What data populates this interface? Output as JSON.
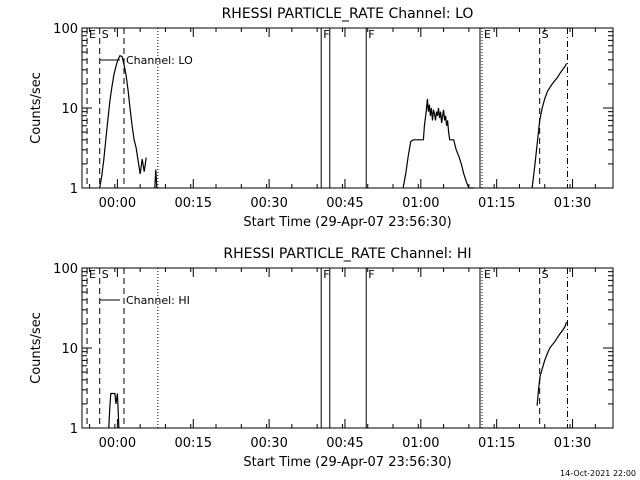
{
  "footer_timestamp": "14-Oct-2021 22:00",
  "colors": {
    "background": "#ffffff",
    "foreground": "#000000"
  },
  "chart_data": [
    {
      "type": "line",
      "title": "RHESSI PARTICLE_RATE Channel: LO",
      "xlabel": "Start Time (29-Apr-07 23:56:30)",
      "ylabel": "Counts/sec",
      "x_unit": "minutes since start time",
      "xlim": [
        -3.5,
        101.5
      ],
      "ylim": [
        1,
        100
      ],
      "yscale": "log",
      "x_ticks": [
        {
          "value": 3.5,
          "label": "00:00"
        },
        {
          "value": 18.5,
          "label": "00:15"
        },
        {
          "value": 33.5,
          "label": "00:30"
        },
        {
          "value": 48.5,
          "label": "00:45"
        },
        {
          "value": 63.5,
          "label": "01:00"
        },
        {
          "value": 78.5,
          "label": "01:15"
        },
        {
          "value": 93.5,
          "label": "01:30"
        }
      ],
      "y_ticks": [
        {
          "value": 1,
          "label": "1"
        },
        {
          "value": 10,
          "label": "10"
        },
        {
          "value": 100,
          "label": "100"
        }
      ],
      "legend": {
        "position": "top-left",
        "entries": [
          "Channel: LO"
        ]
      },
      "markers": [
        {
          "x": -2.5,
          "style": "dashed",
          "label": "E"
        },
        {
          "x": 0.0,
          "style": "dashed",
          "label": "S"
        },
        {
          "x": 4.8,
          "style": "dashed",
          "label": ""
        },
        {
          "x": 11.5,
          "style": "dotted",
          "label": ""
        },
        {
          "x": 43.8,
          "style": "solid",
          "label": "F"
        },
        {
          "x": 45.5,
          "style": "solid",
          "label": ""
        },
        {
          "x": 52.7,
          "style": "solid",
          "label": "F"
        },
        {
          "x": 75.2,
          "style": "solid",
          "label": ""
        },
        {
          "x": 75.6,
          "style": "dotted",
          "label": "E"
        },
        {
          "x": 87.0,
          "style": "dashed",
          "label": "S"
        },
        {
          "x": 92.5,
          "style": "dashdot",
          "label": ""
        }
      ],
      "series": [
        {
          "name": "Channel: LO",
          "segments": [
            {
              "x": [
                0.0,
                0.4,
                0.8,
                1.2,
                1.6,
                2.0,
                2.4,
                2.8,
                3.2,
                3.6,
                4.0,
                4.4,
                4.8,
                5.2,
                5.6,
                6.0,
                6.4,
                6.8,
                7.2,
                7.6,
                8.0,
                8.4,
                8.8,
                9.2
              ],
              "y": [
                1,
                1.4,
                2.2,
                4,
                7,
                12,
                18,
                26,
                33,
                40,
                45,
                44,
                35,
                26,
                17,
                10,
                6,
                4,
                3.2,
                2.2,
                1.5,
                2.3,
                1.6,
                2.4
              ]
            },
            {
              "x": [
                10.9,
                11.1,
                11.3
              ],
              "y": [
                1,
                1.7,
                1
              ]
            },
            {
              "x": [
                60.0,
                60.5,
                61.0,
                61.5,
                62.0,
                62.5,
                63.0,
                63.5,
                64.0,
                64.2,
                64.4,
                64.6,
                64.8,
                65.0,
                65.2,
                65.4,
                65.6,
                65.8,
                66.0,
                66.2,
                66.4,
                66.6,
                66.8,
                67.0,
                67.2,
                67.4,
                67.6,
                67.8,
                68.0,
                68.2,
                68.4,
                68.6,
                68.8,
                69.0,
                69.2,
                69.4,
                69.6,
                69.8,
                70.0,
                70.5,
                71.0,
                71.5,
                72.0,
                72.5,
                73.0,
                73.5,
                74.0
              ],
              "y": [
                1,
                1.5,
                2.5,
                3.8,
                4,
                4,
                4,
                4,
                4,
                6,
                7.5,
                9.5,
                13,
                9,
                11,
                8,
                10,
                7,
                9.5,
                8.5,
                7,
                9,
                8,
                10,
                7.5,
                9,
                6.5,
                8,
                9.5,
                7,
                8,
                6,
                7,
                5,
                4,
                4,
                4,
                4,
                4,
                3,
                2.5,
                2,
                1.5,
                1.2,
                1,
                1,
                1
              ]
            },
            {
              "x": [
                85.5,
                86.0,
                86.5,
                87.0,
                87.5,
                88.0,
                88.5,
                89.0,
                89.5,
                90.0,
                90.5,
                91.0,
                91.5,
                92.0,
                92.3
              ],
              "y": [
                1,
                1.8,
                3.5,
                7,
                10,
                13,
                16,
                18,
                20,
                22,
                24,
                27,
                30,
                33,
                36
              ]
            }
          ]
        }
      ]
    },
    {
      "type": "line",
      "title": "RHESSI PARTICLE_RATE Channel: HI",
      "xlabel": "Start Time (29-Apr-07 23:56:30)",
      "ylabel": "Counts/sec",
      "x_unit": "minutes since start time",
      "xlim": [
        -3.5,
        101.5
      ],
      "ylim": [
        1,
        100
      ],
      "yscale": "log",
      "x_ticks": [
        {
          "value": 3.5,
          "label": "00:00"
        },
        {
          "value": 18.5,
          "label": "00:15"
        },
        {
          "value": 33.5,
          "label": "00:30"
        },
        {
          "value": 48.5,
          "label": "00:45"
        },
        {
          "value": 63.5,
          "label": "01:00"
        },
        {
          "value": 78.5,
          "label": "01:15"
        },
        {
          "value": 93.5,
          "label": "01:30"
        }
      ],
      "y_ticks": [
        {
          "value": 1,
          "label": "1"
        },
        {
          "value": 10,
          "label": "10"
        },
        {
          "value": 100,
          "label": "100"
        }
      ],
      "legend": {
        "position": "top-left",
        "entries": [
          "Channel: HI"
        ]
      },
      "markers": [
        {
          "x": -2.5,
          "style": "dashed",
          "label": "E"
        },
        {
          "x": 0.0,
          "style": "dashed",
          "label": "S"
        },
        {
          "x": 4.8,
          "style": "dashed",
          "label": ""
        },
        {
          "x": 11.5,
          "style": "dotted",
          "label": ""
        },
        {
          "x": 43.8,
          "style": "solid",
          "label": "F"
        },
        {
          "x": 45.5,
          "style": "solid",
          "label": ""
        },
        {
          "x": 52.7,
          "style": "solid",
          "label": "F"
        },
        {
          "x": 75.2,
          "style": "solid",
          "label": ""
        },
        {
          "x": 75.6,
          "style": "dotted",
          "label": "E"
        },
        {
          "x": 87.0,
          "style": "dashed",
          "label": "S"
        },
        {
          "x": 92.5,
          "style": "dashdot",
          "label": ""
        }
      ],
      "series": [
        {
          "name": "Channel: HI",
          "segments": [
            {
              "x": [
                1.8,
                2.0,
                2.2,
                2.6,
                3.0,
                3.2,
                3.5,
                3.8
              ],
              "y": [
                1,
                1.8,
                2.7,
                2.7,
                2.7,
                2,
                2.7,
                1
              ]
            },
            {
              "x": [
                86.5,
                86.8,
                87.1,
                87.5,
                88.0,
                88.5,
                89.0,
                89.5,
                90.0,
                90.5,
                91.0,
                91.5,
                92.0,
                92.3
              ],
              "y": [
                1.9,
                3.2,
                4.5,
                5.5,
                7,
                8.5,
                10,
                11,
                12,
                13.5,
                15,
                16.5,
                18.5,
                21
              ]
            }
          ]
        }
      ]
    }
  ]
}
